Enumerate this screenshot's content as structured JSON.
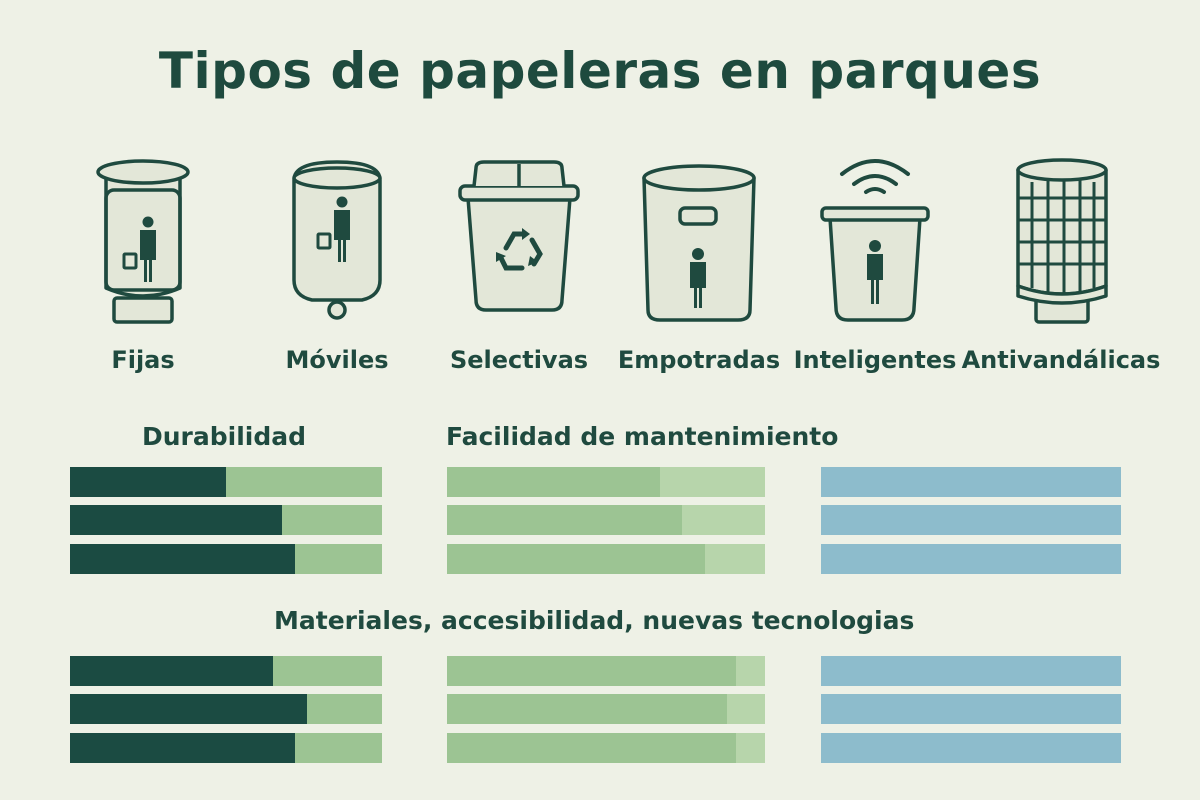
{
  "title": "Tipos de papeleras en parques",
  "bins": [
    {
      "label": "Fijas",
      "icon": "fixed-bin-icon"
    },
    {
      "label": "Móviles",
      "icon": "mobile-bin-icon"
    },
    {
      "label": "Selectivas",
      "icon": "recycling-bin-icon"
    },
    {
      "label": "Empotradas",
      "icon": "built-in-bin-icon"
    },
    {
      "label": "Inteligentes",
      "icon": "smart-bin-icon"
    },
    {
      "label": "Antivandálicas",
      "icon": "anti-vandal-bin-icon"
    }
  ],
  "sections": {
    "durabilidad": "Durabilidad",
    "mantenimiento": "Facilidad de mantenimiento",
    "materiales": "Materiales, accesibilidad, nuevas tecnologias"
  },
  "colors": {
    "background": "#eef1e6",
    "dark_green": "#1b4b42",
    "light_green": "#9cc493",
    "pale_green": "#b7d5ab",
    "blue": "#8dbccc",
    "ink": "#1f4a3f",
    "icon_fill": "#e3e7d8"
  },
  "bar_levels": {
    "group1": {
      "dark": [
        0.5,
        0.68,
        0.72
      ],
      "green": [
        0.67,
        0.74,
        0.81
      ],
      "blue": [
        1,
        1,
        1
      ]
    },
    "group2": {
      "dark": [
        0.65,
        0.76,
        0.72
      ],
      "green": [
        0.91,
        0.88,
        0.91
      ],
      "blue": [
        1,
        1,
        1
      ]
    }
  }
}
